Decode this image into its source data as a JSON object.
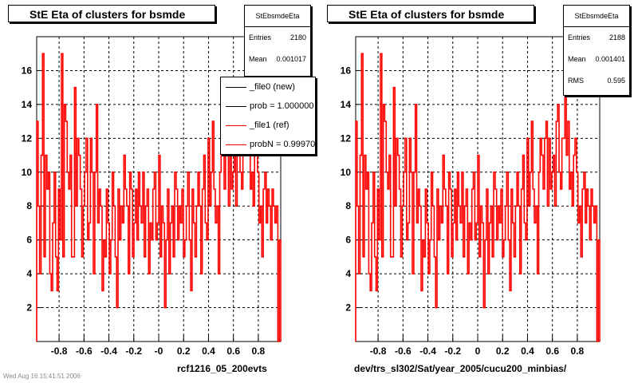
{
  "footer_text": "Wed Aug 16 15:41:51 2006",
  "legend": {
    "items": [
      {
        "label": "_file0 (new)",
        "color": "#000000"
      },
      {
        "label": "prob = 1.000000",
        "color": "#000000"
      },
      {
        "label": "_file1 (ref)",
        "color": "#ff0000"
      },
      {
        "label": "probN = 0.999700",
        "color": "#ff0000"
      }
    ]
  },
  "panels": [
    {
      "title": "StE Eta of clusters for bsmde",
      "xlabel": "rcf1216_05_200evts",
      "stats": {
        "name": "StEbsmdeEta",
        "rows": [
          {
            "label": "Entries",
            "value": "2180"
          },
          {
            "label": "Mean",
            "value": "0.001017"
          }
        ]
      }
    },
    {
      "title": "StE Eta of clusters for bsmde",
      "xlabel": "dev/trs_sl302/Sat/year_2005/cucu200_minbias/",
      "stats": {
        "name": "StEbsmdeEta",
        "rows": [
          {
            "label": "Entries",
            "value": "2188"
          },
          {
            "label": "Mean",
            "value": "0.001401"
          },
          {
            "label": "RMS",
            "value": "0.595"
          }
        ]
      }
    }
  ],
  "chart_data": [
    {
      "type": "bar",
      "title": "StE Eta of clusters for bsmde",
      "xlabel": "rcf1216_05_200evts",
      "ylabel": "",
      "xlim": [
        -0.98,
        0.98
      ],
      "ylim": [
        0,
        18
      ],
      "xticks": [
        -0.8,
        -0.6,
        -0.4,
        -0.2,
        0,
        0.2,
        0.4,
        0.6,
        0.8
      ],
      "xtick_labels": [
        "-0.8",
        "-0.6",
        "-0.4",
        "-0.2",
        "-0",
        "0.2",
        "0.4",
        "0.6",
        "0.8"
      ],
      "yticks": [
        2,
        4,
        6,
        8,
        10,
        12,
        14,
        16
      ],
      "ytick_labels": [
        "2",
        "4",
        "6",
        "8",
        "10",
        "12",
        "14",
        "16"
      ],
      "grid": true,
      "legend_position": "top-right",
      "series": [
        {
          "name": "_file1 (ref)",
          "color": "#ff0000",
          "values": [
            13,
            8,
            4,
            11,
            17,
            5,
            11,
            9,
            10,
            4,
            3,
            7,
            10,
            5,
            3,
            9,
            6,
            17,
            5,
            14,
            13,
            10,
            9,
            11,
            5,
            5,
            15,
            8,
            12,
            11,
            9,
            5,
            8,
            10,
            12,
            6,
            7,
            12,
            10,
            4,
            10,
            14,
            7,
            9,
            8,
            3,
            6,
            5,
            9,
            7,
            4,
            6,
            10,
            8,
            5,
            2,
            9,
            6,
            8,
            7,
            11,
            9,
            8,
            4,
            10,
            9,
            5,
            7,
            9,
            6,
            10,
            8,
            7,
            10,
            5,
            8,
            9,
            4,
            7,
            6,
            9,
            10,
            6,
            7,
            11,
            5,
            8,
            7,
            2,
            6,
            9,
            4,
            7,
            8,
            5,
            10,
            9,
            6,
            8,
            7,
            9,
            5,
            6,
            8,
            10,
            6,
            3,
            9,
            7,
            5,
            8,
            10,
            8,
            4,
            9,
            11,
            7,
            6,
            12,
            8,
            10,
            13,
            9,
            7,
            8,
            4,
            10,
            12,
            11,
            9,
            12,
            13,
            8,
            12,
            9,
            10,
            11,
            8,
            13,
            14,
            10,
            9,
            12,
            12,
            15,
            11,
            13,
            9,
            10,
            8,
            11,
            12,
            10,
            7,
            8,
            5,
            9,
            10,
            7,
            9,
            8,
            6,
            9,
            8,
            7,
            8,
            0,
            6
          ]
        }
      ]
    },
    {
      "type": "bar",
      "title": "StE Eta of clusters for bsmde",
      "xlabel": "dev/trs_sl302/Sat/year_2005/cucu200_minbias/",
      "ylabel": "",
      "xlim": [
        -0.98,
        0.98
      ],
      "ylim": [
        0,
        18
      ],
      "xticks": [
        -0.8,
        -0.6,
        -0.4,
        -0.2,
        0,
        0.2,
        0.4,
        0.6,
        0.8
      ],
      "xtick_labels": [
        "-0.8",
        "-0.6",
        "-0.4",
        "-0.2",
        "0",
        "0.2",
        "0.4",
        "0.6",
        "0.8"
      ],
      "yticks": [
        2,
        4,
        6,
        8,
        10,
        12,
        14,
        16
      ],
      "ytick_labels": [
        "2",
        "4",
        "6",
        "8",
        "10",
        "12",
        "14",
        "16"
      ],
      "grid": true,
      "legend_position": "none",
      "series": [
        {
          "name": "",
          "color": "#ff0000",
          "values": [
            13,
            8,
            4,
            11,
            17,
            5,
            11,
            9,
            10,
            4,
            3,
            7,
            10,
            5,
            3,
            9,
            6,
            17,
            5,
            14,
            13,
            10,
            9,
            11,
            5,
            5,
            15,
            8,
            12,
            11,
            9,
            5,
            8,
            10,
            12,
            6,
            7,
            12,
            10,
            4,
            10,
            14,
            7,
            9,
            8,
            3,
            6,
            5,
            9,
            7,
            4,
            6,
            10,
            8,
            5,
            2,
            9,
            6,
            8,
            7,
            11,
            9,
            8,
            4,
            10,
            9,
            5,
            7,
            9,
            6,
            10,
            8,
            7,
            10,
            5,
            8,
            9,
            4,
            7,
            6,
            9,
            10,
            6,
            7,
            11,
            5,
            8,
            7,
            2,
            6,
            9,
            4,
            7,
            8,
            5,
            10,
            9,
            6,
            8,
            7,
            9,
            5,
            6,
            8,
            10,
            6,
            3,
            9,
            7,
            5,
            8,
            10,
            8,
            4,
            9,
            11,
            7,
            6,
            12,
            8,
            10,
            13,
            9,
            7,
            8,
            4,
            10,
            12,
            11,
            9,
            12,
            13,
            8,
            12,
            9,
            10,
            11,
            8,
            13,
            14,
            10,
            9,
            12,
            12,
            15,
            11,
            13,
            9,
            10,
            8,
            11,
            12,
            10,
            7,
            8,
            5,
            9,
            10,
            7,
            9,
            8,
            6,
            9,
            8,
            7,
            8,
            0,
            6
          ]
        }
      ]
    }
  ]
}
